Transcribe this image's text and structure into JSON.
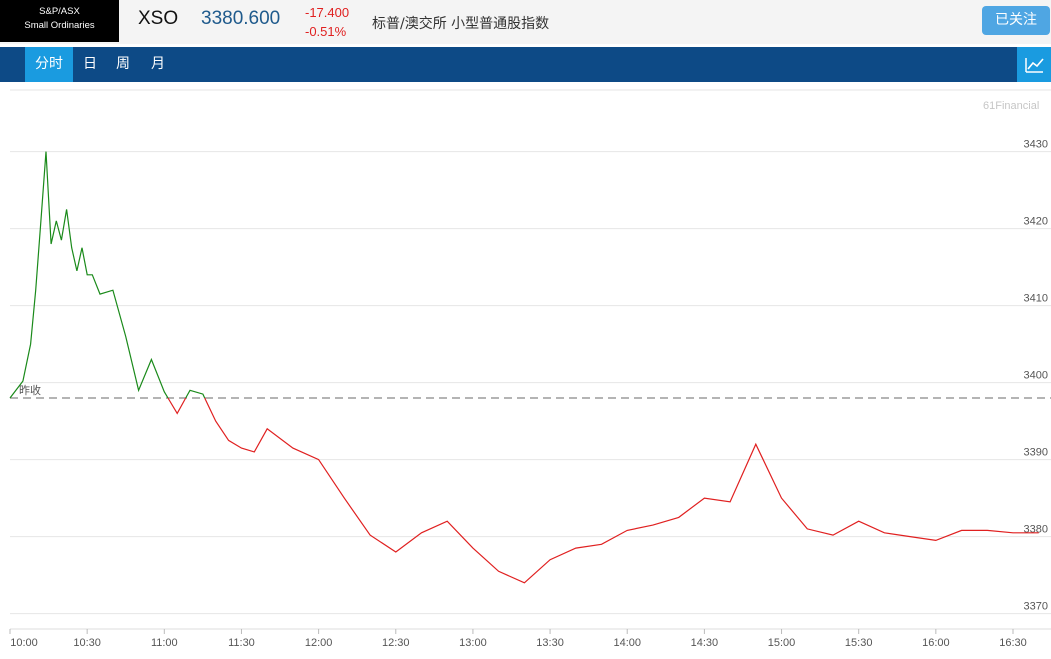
{
  "header": {
    "badge_line1": "S&P/ASX",
    "badge_line2": "Small Ordinaries",
    "symbol": "XSO",
    "price": "3380.600",
    "change": "-17.400",
    "change_pct": "-0.51%",
    "name": "标普/澳交所 小型普通股指数",
    "follow_label": "已关注"
  },
  "tabs": [
    {
      "label": "分时",
      "active": true
    },
    {
      "label": "日",
      "active": false
    },
    {
      "label": "周",
      "active": false
    },
    {
      "label": "月",
      "active": false
    }
  ],
  "icons": {
    "chart_toggle": "line-chart-icon"
  },
  "colors": {
    "up": "#1a8a1a",
    "down": "#e02020",
    "nav": "#0d4a86",
    "accent": "#1a9be0"
  },
  "watermark": "61Financial",
  "chart_data": {
    "type": "line",
    "prev_close_label": "昨收",
    "prev_close": 3398.0,
    "x_ticks": [
      "10:00",
      "10:30",
      "11:00",
      "11:30",
      "12:00",
      "12:30",
      "13:00",
      "13:30",
      "14:00",
      "14:30",
      "15:00",
      "15:30",
      "16:00",
      "16:30"
    ],
    "y_ticks": [
      3370,
      3380,
      3390,
      3400,
      3410,
      3420,
      3430
    ],
    "ylim": [
      3368,
      3438
    ],
    "x_minutes": [
      0,
      5,
      8,
      10,
      12,
      14,
      16,
      18,
      20,
      22,
      24,
      26,
      28,
      30,
      32,
      35,
      40,
      45,
      50,
      55,
      60,
      65,
      70,
      75,
      80,
      85,
      90,
      95,
      100,
      110,
      120,
      130,
      140,
      150,
      160,
      170,
      180,
      190,
      200,
      210,
      220,
      230,
      240,
      250,
      260,
      270,
      280,
      290,
      300,
      310,
      320,
      330,
      340,
      350,
      360,
      370,
      380,
      390,
      400
    ],
    "values": [
      3398.0,
      3400.2,
      3405.0,
      3412.0,
      3421.0,
      3430.0,
      3418.0,
      3421.0,
      3418.5,
      3422.5,
      3417.5,
      3414.5,
      3417.5,
      3414.0,
      3414.0,
      3411.5,
      3412.0,
      3406.0,
      3399.0,
      3403.0,
      3398.8,
      3396.0,
      3399.0,
      3398.5,
      3395.0,
      3392.5,
      3391.5,
      3391.0,
      3394.0,
      3391.5,
      3390.0,
      3385.0,
      3380.2,
      3378.0,
      3380.5,
      3382.0,
      3378.5,
      3375.5,
      3374.0,
      3377.0,
      3378.5,
      3379.0,
      3380.8,
      3381.5,
      3382.5,
      3385.0,
      3384.5,
      3392.0,
      3385.0,
      3381.0,
      3380.2,
      3382.0,
      3380.5,
      3380.0,
      3379.5,
      3380.8,
      3380.8,
      3380.5,
      3380.5
    ]
  }
}
